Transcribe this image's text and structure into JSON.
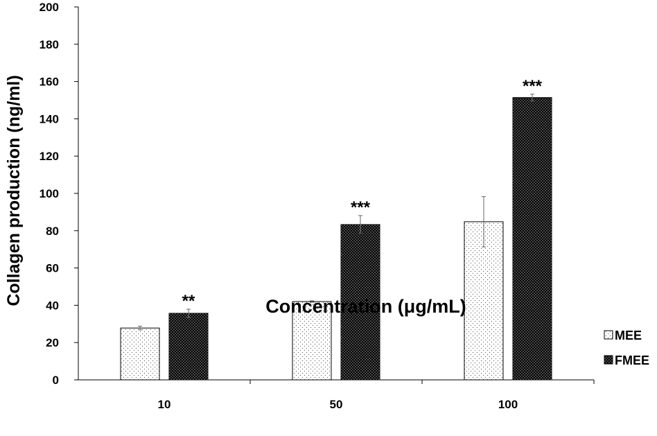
{
  "chart_data": {
    "type": "bar",
    "title": "",
    "xlabel": "Concentration (μg/mL)",
    "ylabel": "Collagen production (ng/ml)",
    "ylim": [
      0,
      200
    ],
    "yticks": [
      0,
      20,
      40,
      60,
      80,
      100,
      120,
      140,
      160,
      180,
      200
    ],
    "categories": [
      "10",
      "50",
      "100"
    ],
    "series": [
      {
        "name": "MEE",
        "values": [
          27.8,
          42.0,
          84.8
        ],
        "errors": [
          1.0,
          0.4,
          13.5
        ],
        "fill": "dotted-light",
        "color": "#ffffff"
      },
      {
        "name": "FMEE",
        "values": [
          35.7,
          83.3,
          151.4
        ],
        "errors": [
          2.2,
          4.8,
          1.8
        ],
        "fill": "dotted-dark",
        "color": "#000000"
      }
    ],
    "significance": [
      {
        "series": "FMEE",
        "category": "10",
        "label": "**"
      },
      {
        "series": "FMEE",
        "category": "50",
        "label": "***"
      },
      {
        "series": "FMEE",
        "category": "100",
        "label": "***"
      }
    ],
    "grid": false,
    "legend_position": "bottom-right"
  }
}
